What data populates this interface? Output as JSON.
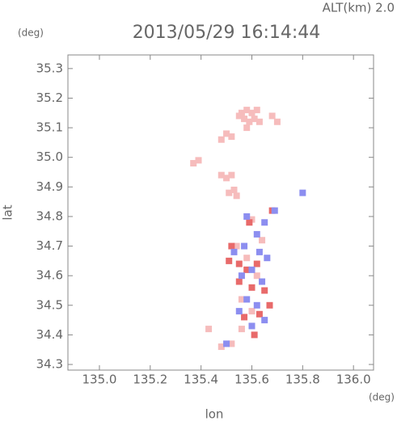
{
  "chart_data": {
    "type": "scatter",
    "title": "2013/05/29 16:14:44",
    "annotation": "ALT(km) 2.0",
    "y_unit": "(deg)",
    "x_unit": "(deg)",
    "x_label": "lon",
    "y_label": "lat",
    "xlim": [
      134.876,
      136.079
    ],
    "ylim": [
      34.281,
      35.346
    ],
    "xticks": [
      {
        "value": 135,
        "label": "135.0"
      },
      135.2,
      135.4,
      135.6,
      135.8,
      {
        "value": 136,
        "label": "136.0"
      }
    ],
    "yticks": [
      34.3,
      34.4,
      34.5,
      34.6,
      34.7,
      34.8,
      34.9,
      {
        "value": 35,
        "label": "35.0"
      },
      35.1,
      35.2,
      35.3
    ],
    "series": [
      {
        "color": "#f6bcbc",
        "x": [
          135.56,
          135.58,
          135.6,
          135.62,
          135.57,
          135.59,
          135.61,
          135.63,
          135.58,
          135.55,
          135.68,
          135.7,
          135.5,
          135.52,
          135.48,
          135.37,
          135.39,
          135.48,
          135.5,
          135.52,
          135.53,
          135.51,
          135.54,
          135.6,
          135.58,
          135.62,
          135.56,
          135.6,
          135.56,
          135.48,
          135.52,
          135.43,
          135.64,
          135.54
        ],
        "y": [
          35.15,
          35.16,
          35.15,
          35.16,
          35.13,
          35.12,
          35.13,
          35.12,
          35.1,
          35.14,
          35.14,
          35.12,
          35.08,
          35.07,
          35.06,
          34.98,
          34.99,
          34.94,
          34.93,
          34.94,
          34.89,
          34.88,
          34.87,
          34.79,
          34.66,
          34.6,
          34.52,
          34.48,
          34.42,
          34.36,
          34.37,
          34.42,
          34.72,
          34.7
        ]
      },
      {
        "color": "#e86a6a",
        "x": [
          135.55,
          135.58,
          135.62,
          135.51,
          135.6,
          135.65,
          135.55,
          135.63,
          135.67,
          135.57,
          135.61,
          135.59,
          135.68,
          135.52
        ],
        "y": [
          34.64,
          34.62,
          34.64,
          34.65,
          34.56,
          34.55,
          34.58,
          34.47,
          34.5,
          34.46,
          34.4,
          34.78,
          34.82,
          34.7
        ]
      },
      {
        "color": "#8c8ef0",
        "x": [
          135.53,
          135.57,
          135.63,
          135.66,
          135.6,
          135.56,
          135.64,
          135.58,
          135.62,
          135.55,
          135.65,
          135.6,
          135.58,
          135.65,
          135.69,
          135.8,
          135.62,
          135.5
        ],
        "y": [
          34.68,
          34.7,
          34.68,
          34.66,
          34.62,
          34.6,
          34.58,
          34.52,
          34.5,
          34.48,
          34.45,
          34.43,
          34.8,
          34.78,
          34.82,
          34.88,
          34.74,
          34.37
        ]
      }
    ]
  }
}
